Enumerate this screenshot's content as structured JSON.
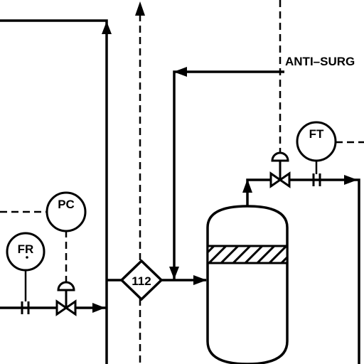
{
  "diagram": {
    "type": "process-instrumentation-diagram",
    "instruments": {
      "fr": "FR",
      "pc": "PC",
      "ft": "FT"
    },
    "junction_tag": "112",
    "line_label": "ANTI–SURG"
  }
}
